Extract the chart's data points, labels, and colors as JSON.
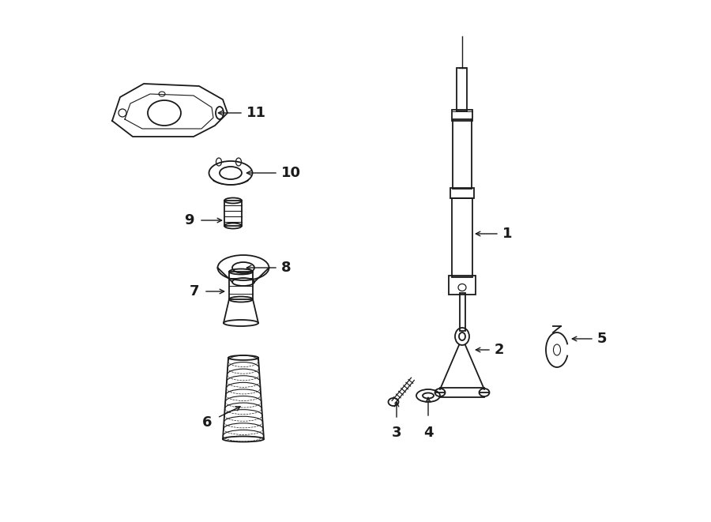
{
  "bg_color": "#ffffff",
  "line_color": "#1a1a1a",
  "fig_width": 9.0,
  "fig_height": 6.61,
  "dpi": 100,
  "xlim": [
    0,
    9.0
  ],
  "ylim": [
    0,
    6.61
  ]
}
